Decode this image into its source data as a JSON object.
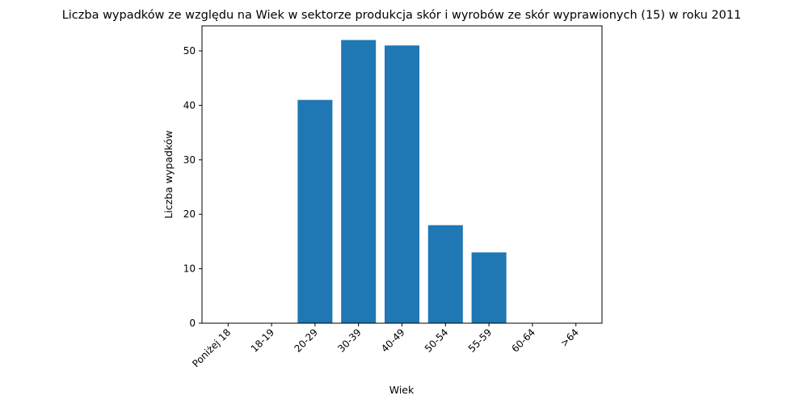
{
  "chart_data": {
    "type": "bar",
    "title": "Liczba wypadków ze względu na Wiek w sektorze produkcja skór i wyrobów ze skór wyprawionych  (15) w roku 2011",
    "xlabel": "Wiek",
    "ylabel": "Liczba wypadków",
    "categories": [
      "Poniżej 18",
      "18-19",
      "20-29",
      "30-39",
      "40-49",
      "50-54",
      "55-59",
      "60-64",
      ">64"
    ],
    "values": [
      0,
      0,
      41,
      52,
      51,
      18,
      13,
      0,
      0
    ],
    "ylim": [
      0,
      54.6
    ],
    "yticks": [
      0,
      10,
      20,
      30,
      40,
      50
    ],
    "color": "#1f77b4",
    "grid": false,
    "legend": "none"
  }
}
